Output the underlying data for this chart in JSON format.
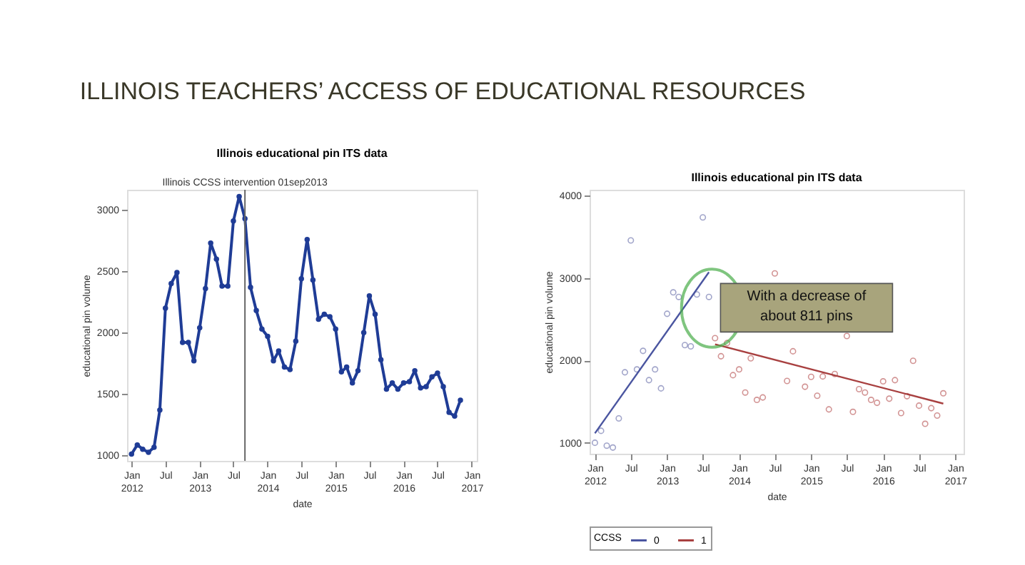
{
  "chart_data": [
    {
      "type": "line",
      "title": "Illinois educational pin ITS data",
      "annotations": [
        "ILLINOIS TEACHERS’ ACCESS OF EDUCATIONAL RESOURCES"
      ],
      "xlabel": "date",
      "ylabel": "educational pin volume",
      "marker": "circle",
      "grid": false,
      "x": [
        "2012-01",
        "2012-02",
        "2012-03",
        "2012-04",
        "2012-05",
        "2012-06",
        "2012-07",
        "2012-08",
        "2012-09",
        "2012-10",
        "2012-11",
        "2012-12",
        "2013-01",
        "2013-02",
        "2013-03",
        "2013-04",
        "2013-05",
        "2013-06",
        "2013-07",
        "2013-08",
        "2013-09",
        "2013-10",
        "2013-11",
        "2013-12",
        "2014-01",
        "2014-02",
        "2014-03",
        "2014-04",
        "2014-05",
        "2014-06",
        "2014-07",
        "2014-08",
        "2014-09",
        "2014-10",
        "2014-11",
        "2014-12",
        "2015-01",
        "2015-02",
        "2015-03",
        "2015-04",
        "2015-05",
        "2015-06",
        "2015-07",
        "2015-08",
        "2015-09",
        "2015-10",
        "2015-11",
        "2015-12",
        "2016-01",
        "2016-02",
        "2016-03",
        "2016-04",
        "2016-05",
        "2016-06",
        "2016-07",
        "2016-08",
        "2016-09",
        "2016-10",
        "2016-11"
      ],
      "series": [
        {
          "color": "#1f3c96",
          "values": [
            1010,
            1085,
            1050,
            1025,
            1065,
            1370,
            2200,
            2400,
            2490,
            1920,
            1920,
            1770,
            2040,
            2360,
            2730,
            2600,
            2380,
            2380,
            2910,
            3110,
            2930,
            2370,
            2180,
            2030,
            1970,
            1770,
            1850,
            1720,
            1700,
            1930,
            2440,
            2760,
            2430,
            2110,
            2150,
            2130,
            2030,
            1680,
            1720,
            1590,
            1690,
            2000,
            2300,
            2150,
            1780,
            1540,
            1590,
            1540,
            1590,
            1600,
            1690,
            1550,
            1560,
            1640,
            1670,
            1560,
            1350,
            1320,
            1450
          ]
        }
      ],
      "xlim": [
        "2011-12-08",
        "2017-01-28"
      ],
      "ylim": [
        955,
        3165
      ],
      "yticks": [
        1000,
        1500,
        2000,
        2500,
        3000
      ],
      "xticks": [
        {
          "value": "2012-01",
          "label": "Jan 2012"
        },
        {
          "value": "2012-07",
          "label": "Jul"
        },
        {
          "value": "2013-01",
          "label": "Jan 2013"
        },
        {
          "value": "2013-07",
          "label": "Jul"
        },
        {
          "value": "2014-01",
          "label": "Jan 2014"
        },
        {
          "value": "2014-07",
          "label": "Jul"
        },
        {
          "value": "2015-01",
          "label": "Jan 2015"
        },
        {
          "value": "2015-07",
          "label": "Jul"
        },
        {
          "value": "2016-01",
          "label": "Jan 2016"
        },
        {
          "value": "2016-07",
          "label": "Jul"
        },
        {
          "value": "2017-01",
          "label": "Jan 2017"
        }
      ],
      "ref_lines": [
        {
          "axis": "x",
          "value": "2013-09-01",
          "label": "Illinois CCSS intervention 01sep2013",
          "color": "#666666"
        }
      ]
    },
    {
      "type": "scatter",
      "title": "Illinois educational pin ITS data",
      "xlabel": "date",
      "ylabel": "educational pin volume",
      "legend_title": "CCSS",
      "legend": "bottom",
      "marker": "circle",
      "grid": false,
      "annotations": [
        "With a decrease of about 811 pins"
      ],
      "series": [
        {
          "color": "#7b80b4",
          "x": [
            "2012-01",
            "2012-02",
            "2012-03",
            "2012-04",
            "2012-05",
            "2012-06",
            "2012-07",
            "2012-08",
            "2012-09",
            "2012-10",
            "2012-11",
            "2012-12",
            "2013-01",
            "2013-02",
            "2013-03",
            "2013-04",
            "2013-05",
            "2013-06",
            "2013-07",
            "2013-08"
          ],
          "values": [
            1000,
            1145,
            965,
            942,
            1295,
            1855,
            3455,
            1890,
            2115,
            1760,
            1890,
            1660,
            2565,
            2825,
            2770,
            2185,
            2170,
            2800,
            3735,
            2770
          ]
        },
        {
          "color": "#c06868",
          "x": [
            "2013-09",
            "2013-10",
            "2013-11",
            "2013-12",
            "2014-01",
            "2014-02",
            "2014-03",
            "2014-04",
            "2014-05",
            "2014-07",
            "2014-09",
            "2014-10",
            "2014-12",
            "2015-01",
            "2015-02",
            "2015-03",
            "2015-04",
            "2015-05",
            "2015-07",
            "2015-08",
            "2015-09",
            "2015-10",
            "2015-11",
            "2015-12",
            "2016-01",
            "2016-02",
            "2016-03",
            "2016-04",
            "2016-05",
            "2016-06",
            "2016-07",
            "2016-08",
            "2016-09",
            "2016-10",
            "2016-11"
          ],
          "values": [
            2270,
            2050,
            2210,
            1820,
            1890,
            1610,
            2025,
            1520,
            1550,
            3055,
            1750,
            2110,
            1680,
            1800,
            1570,
            1805,
            1405,
            1835,
            2295,
            1375,
            1650,
            1610,
            1520,
            1485,
            1745,
            1535,
            1760,
            1360,
            1565,
            1995,
            1450,
            1230,
            1420,
            1330,
            1600
          ]
        },
        {
          "type": "line",
          "name": "0",
          "marker": "none",
          "color": "#4a55a0",
          "x": [
            "2012-01",
            "2013-08"
          ],
          "values": [
            1115,
            3070
          ]
        },
        {
          "type": "line",
          "name": "1",
          "marker": "none",
          "color": "#a84040",
          "x": [
            "2013-09",
            "2016-11"
          ],
          "values": [
            2195,
            1475
          ]
        }
      ],
      "xlim": [
        "2011-12-05",
        "2017-02-12"
      ],
      "ylim": [
        867,
        4070
      ],
      "yticks": [
        1000,
        2000,
        3000,
        4000
      ],
      "xticks": [
        {
          "value": "2012-01",
          "label": "Jan 2012"
        },
        {
          "value": "2012-07",
          "label": "Jul"
        },
        {
          "value": "2013-01",
          "label": "Jan 2013"
        },
        {
          "value": "2013-07",
          "label": "Jul"
        },
        {
          "value": "2014-01",
          "label": "Jan 2014"
        },
        {
          "value": "2014-07",
          "label": "Jul"
        },
        {
          "value": "2015-01",
          "label": "Jan 2015"
        },
        {
          "value": "2015-07",
          "label": "Jul"
        },
        {
          "value": "2016-01",
          "label": "Jan 2016"
        },
        {
          "value": "2016-07",
          "label": "Jul"
        },
        {
          "value": "2017-01",
          "label": "Jan 2017"
        }
      ]
    }
  ]
}
